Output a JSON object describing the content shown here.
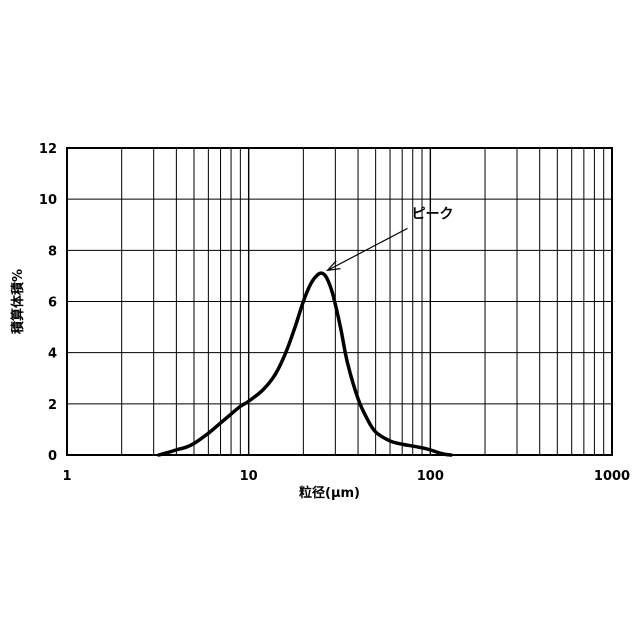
{
  "chart_data": {
    "type": "line",
    "xscale": "log",
    "xlim": [
      1,
      1000
    ],
    "ylim": [
      0,
      12
    ],
    "grid": true,
    "title": "",
    "xlabel": "粒径(μm)",
    "ylabel": "積算体積%",
    "x_ticks": [
      "1",
      "10",
      "100",
      "1000"
    ],
    "y_ticks": [
      "0",
      "2",
      "4",
      "6",
      "8",
      "10",
      "12"
    ],
    "series": [
      {
        "x": [
          3.2,
          3.6,
          4.0,
          4.5,
          5.0,
          6.0,
          7.0,
          8.0,
          9.0,
          10.0,
          12.0,
          14.0,
          16.0,
          18.0,
          20.0,
          22.0,
          24.0,
          25.5,
          27.0,
          29.0,
          32.0,
          35.0,
          40.0,
          45.0,
          50.0,
          60.0,
          70.0,
          80.0,
          90.0,
          100.0,
          110.0,
          120.0,
          130.0
        ],
        "values": [
          0.0,
          0.1,
          0.2,
          0.3,
          0.45,
          0.85,
          1.25,
          1.6,
          1.9,
          2.1,
          2.55,
          3.15,
          4.0,
          5.0,
          6.0,
          6.7,
          7.05,
          7.1,
          6.9,
          6.3,
          5.0,
          3.6,
          2.2,
          1.4,
          0.9,
          0.55,
          0.42,
          0.35,
          0.28,
          0.2,
          0.1,
          0.03,
          0.0
        ]
      }
    ],
    "annotations": [
      {
        "text": "ピーク",
        "x": 25.5,
        "y": 7.1
      }
    ]
  }
}
